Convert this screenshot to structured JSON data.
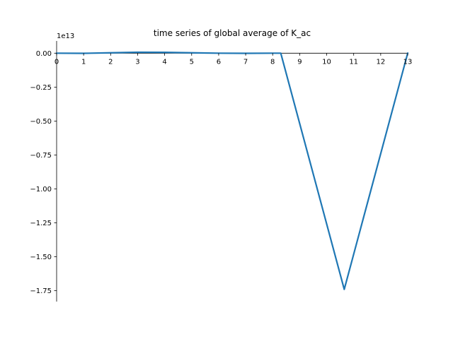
{
  "chart_data": {
    "type": "line",
    "title": "time series of global average of K_ac",
    "xlabel": "",
    "ylabel": "",
    "y_offset_label": "1e13",
    "xlim": [
      0,
      13
    ],
    "ylim": [
      -1.83,
      0.09
    ],
    "x_ticks": [
      0,
      1,
      2,
      3,
      4,
      5,
      6,
      7,
      8,
      9,
      10,
      11,
      12,
      13
    ],
    "x_tick_labels": [
      "0",
      "1",
      "2",
      "3",
      "4",
      "5",
      "6",
      "7",
      "8",
      "9",
      "10",
      "11",
      "12",
      "13"
    ],
    "y_ticks": [
      0.0,
      -0.25,
      -0.5,
      -0.75,
      -1.0,
      -1.25,
      -1.5,
      -1.75
    ],
    "y_tick_labels": [
      "0.00",
      "−0.25",
      "−0.50",
      "−0.75",
      "−1.00",
      "−1.25",
      "−1.50",
      "−1.75"
    ],
    "grid": false,
    "legend": "none",
    "series": [
      {
        "color": "#1f77b4",
        "x": [
          0,
          1,
          2,
          3,
          4,
          5,
          6,
          7,
          8,
          8.3,
          10.65,
          13
        ],
        "y": [
          0.0,
          -0.001,
          0.003,
          0.007,
          0.006,
          0.003,
          0.0,
          -0.001,
          0.0,
          0.0,
          -1.74,
          0.0
        ]
      }
    ]
  }
}
